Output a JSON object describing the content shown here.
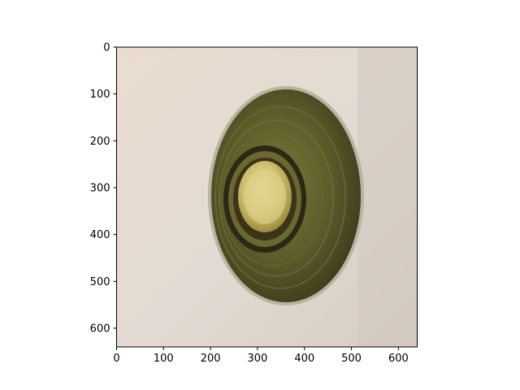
{
  "figure": {
    "image_description": "",
    "x_ticks": [
      "0",
      "100",
      "200",
      "300",
      "400",
      "500",
      "600"
    ],
    "y_ticks": [
      "0",
      "100",
      "200",
      "300",
      "400",
      "500",
      "600"
    ]
  },
  "chart_data": {
    "type": "image",
    "xlim": [
      0,
      640
    ],
    "ylim": [
      640,
      0
    ],
    "x_tick_values": [
      0,
      100,
      200,
      300,
      400,
      500,
      600
    ],
    "y_tick_values": [
      0,
      100,
      200,
      300,
      400,
      500,
      600
    ],
    "grid": false
  }
}
